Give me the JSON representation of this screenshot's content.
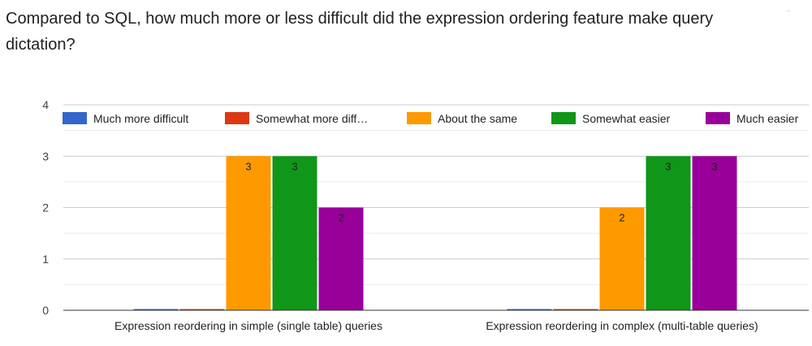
{
  "question": "Compared to SQL, how much more or less difficult did the expression ordering feature make query dictation?",
  "chart_data": {
    "type": "bar",
    "categories": [
      "Expression reordering in simple (single table) queries",
      "Expression reordering in complex (multi-table queries)"
    ],
    "series": [
      {
        "name": "Much more difficult",
        "legend_label": "Much more difficult",
        "color": "#3366cc",
        "values": [
          0,
          0
        ]
      },
      {
        "name": "Somewhat more difficult",
        "legend_label": "Somewhat more diff…",
        "color": "#dc3912",
        "values": [
          0,
          0
        ]
      },
      {
        "name": "About the same",
        "legend_label": "About the same",
        "color": "#ff9900",
        "values": [
          3,
          2
        ]
      },
      {
        "name": "Somewhat easier",
        "legend_label": "Somewhat easier",
        "color": "#109618",
        "values": [
          3,
          3
        ]
      },
      {
        "name": "Much easier",
        "legend_label": "Much easier",
        "color": "#990099",
        "values": [
          2,
          3
        ]
      }
    ],
    "ylim": [
      0,
      4
    ],
    "yticks": [
      0,
      1,
      2,
      3,
      4
    ],
    "grid": true,
    "legend_position": "top"
  }
}
